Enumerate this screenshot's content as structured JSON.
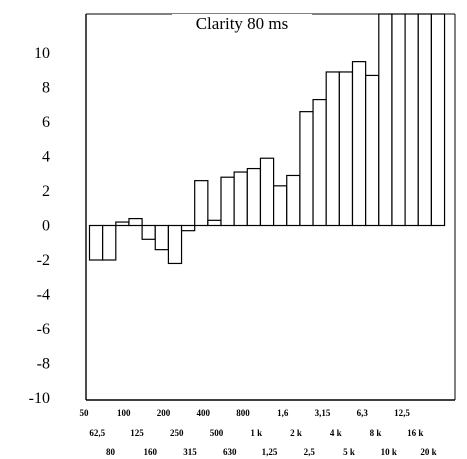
{
  "chart_data": {
    "type": "bar",
    "title": "Clarity 80 ms",
    "xlabel": "",
    "ylabel": "",
    "ylim": [
      -10,
      11.6
    ],
    "yticks": [
      "10",
      "8",
      "6",
      "4",
      "2",
      "0",
      "-2",
      "-4",
      "-6",
      "-8",
      "-10"
    ],
    "categories": [
      "50",
      "62,5",
      "80",
      "100",
      "125",
      "160",
      "200",
      "250",
      "315",
      "400",
      "500",
      "630",
      "800",
      "1 k",
      "1,25",
      "1,6",
      "2 k",
      "2,5",
      "3,15",
      "4 k",
      "5 k",
      "6,3",
      "8 k",
      "10 k",
      "12,5",
      "16 k",
      "20 k"
    ],
    "series": [
      {
        "values": [
          -2.0,
          -2.0,
          0.2,
          0.4,
          -0.8,
          -1.4,
          -2.2,
          -0.3,
          2.6,
          0.3,
          2.8,
          3.1,
          3.3,
          3.9,
          2.3,
          2.9,
          6.6,
          7.3,
          8.9,
          8.9,
          9.5,
          8.7,
          11.6,
          11.6,
          11.6,
          11.6,
          11.6
        ]
      }
    ],
    "clipped_above_axis": [
      "8 k",
      "10 k",
      "12,5",
      "16 k",
      "20 k"
    ],
    "grid": false,
    "legend": "none",
    "bar_fill": "#ffffff",
    "bar_stroke": "#000000"
  }
}
